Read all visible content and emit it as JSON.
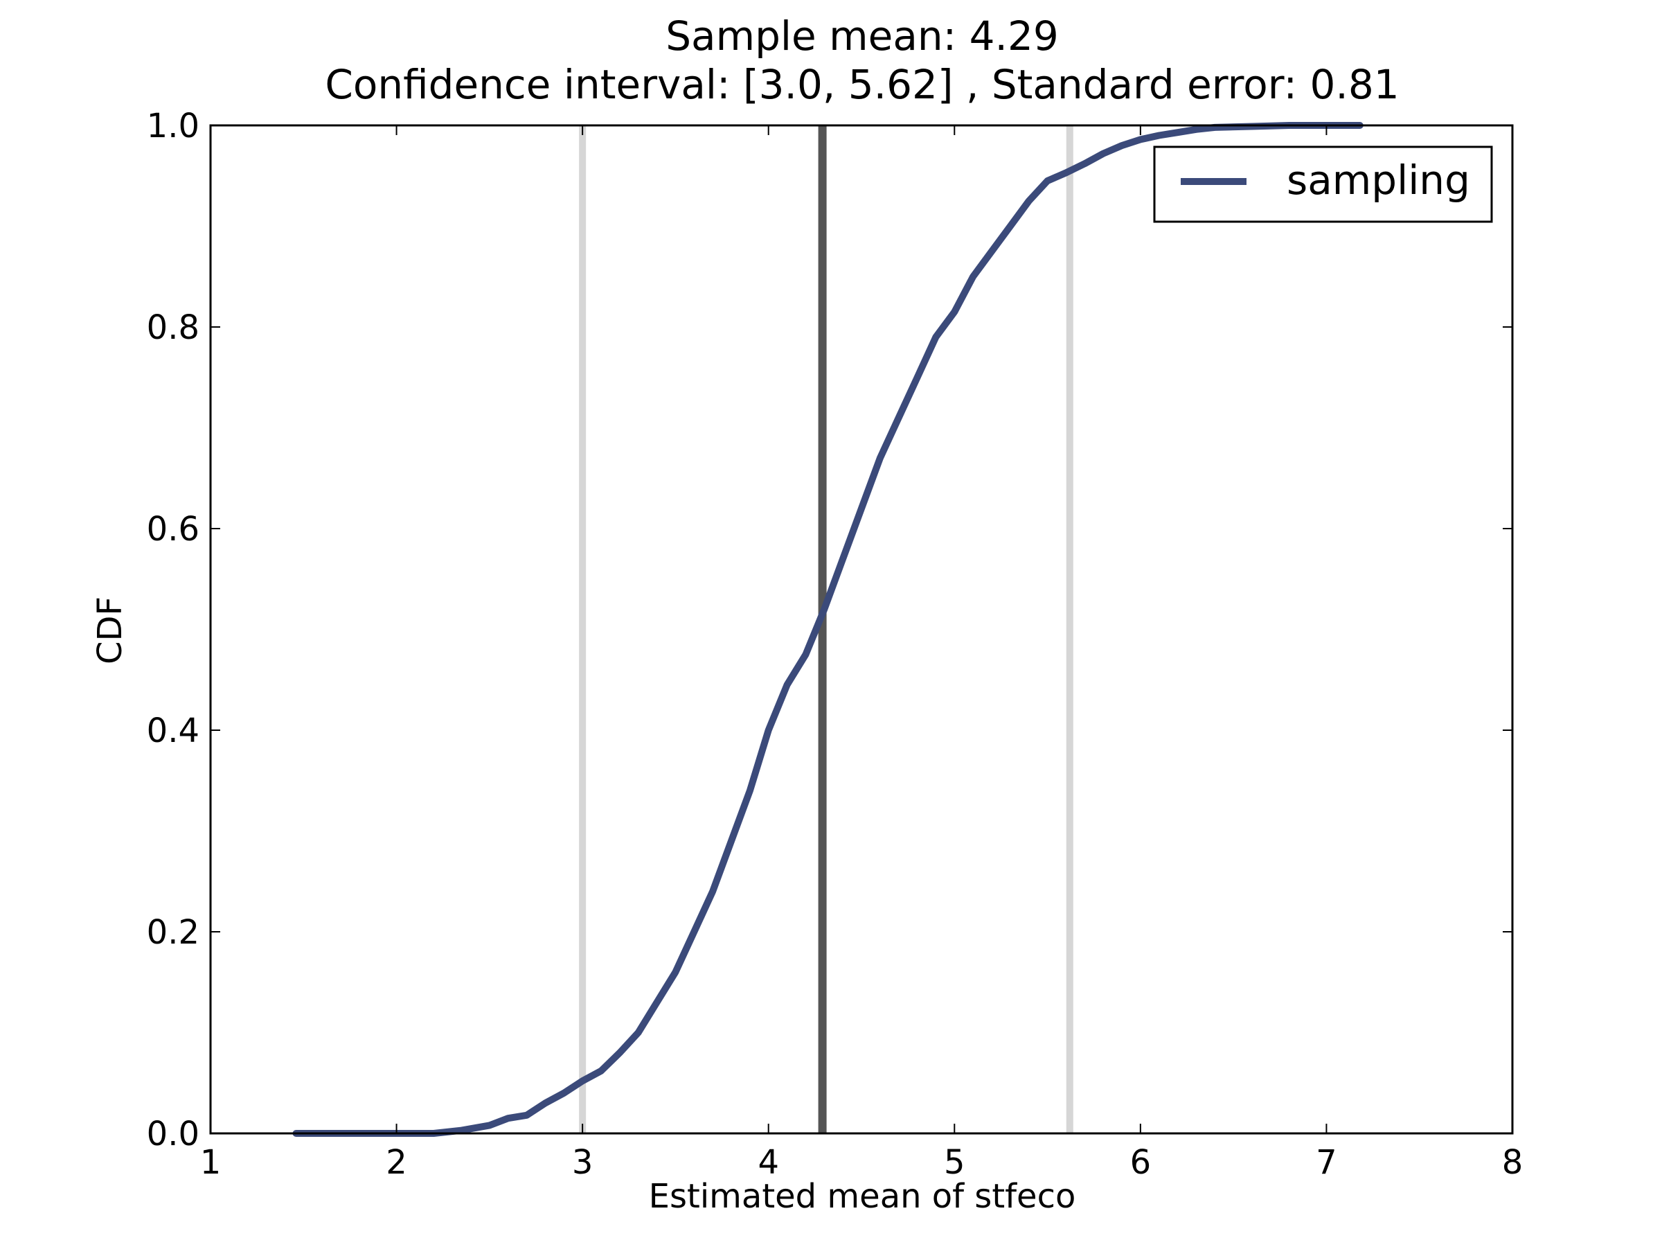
{
  "chart_data": {
    "type": "line",
    "title": "Sample mean: 4.29",
    "subtitle": "Confidence interval: [3.0, 5.62] , Standard error: 0.81",
    "xlabel": "Estimated mean of stfeco",
    "ylabel": "CDF",
    "xlim": [
      1,
      8
    ],
    "ylim": [
      0.0,
      1.0
    ],
    "x_ticks": [
      "1",
      "2",
      "3",
      "4",
      "5",
      "6",
      "7",
      "8"
    ],
    "y_ticks": [
      "0.0",
      "0.2",
      "0.4",
      "0.6",
      "0.8",
      "1.0"
    ],
    "grid": false,
    "legend": {
      "position": "upper right",
      "entries": [
        "sampling"
      ]
    },
    "vertical_lines": [
      {
        "x": 3.0,
        "color": "#d6d6d6",
        "role": "ci-lower"
      },
      {
        "x": 4.29,
        "color": "#555555",
        "role": "mean"
      },
      {
        "x": 5.62,
        "color": "#d6d6d6",
        "role": "ci-upper"
      }
    ],
    "series": [
      {
        "name": "sampling",
        "color": "#3b4a7a",
        "x": [
          1.46,
          2.2,
          2.35,
          2.5,
          2.6,
          2.7,
          2.8,
          2.9,
          3.0,
          3.1,
          3.2,
          3.3,
          3.4,
          3.5,
          3.6,
          3.7,
          3.8,
          3.9,
          4.0,
          4.1,
          4.2,
          4.3,
          4.4,
          4.5,
          4.6,
          4.7,
          4.8,
          4.9,
          5.0,
          5.1,
          5.2,
          5.3,
          5.4,
          5.5,
          5.6,
          5.7,
          5.8,
          5.9,
          6.0,
          6.1,
          6.2,
          6.3,
          6.4,
          6.6,
          6.8,
          7.0,
          7.18
        ],
        "y": [
          0.0,
          0.0,
          0.003,
          0.008,
          0.015,
          0.018,
          0.03,
          0.04,
          0.052,
          0.062,
          0.08,
          0.1,
          0.13,
          0.16,
          0.2,
          0.24,
          0.29,
          0.34,
          0.4,
          0.445,
          0.475,
          0.52,
          0.57,
          0.62,
          0.67,
          0.71,
          0.75,
          0.79,
          0.815,
          0.85,
          0.875,
          0.9,
          0.925,
          0.945,
          0.953,
          0.962,
          0.972,
          0.98,
          0.986,
          0.99,
          0.993,
          0.996,
          0.998,
          0.999,
          1.0,
          1.0,
          1.0
        ]
      }
    ]
  }
}
